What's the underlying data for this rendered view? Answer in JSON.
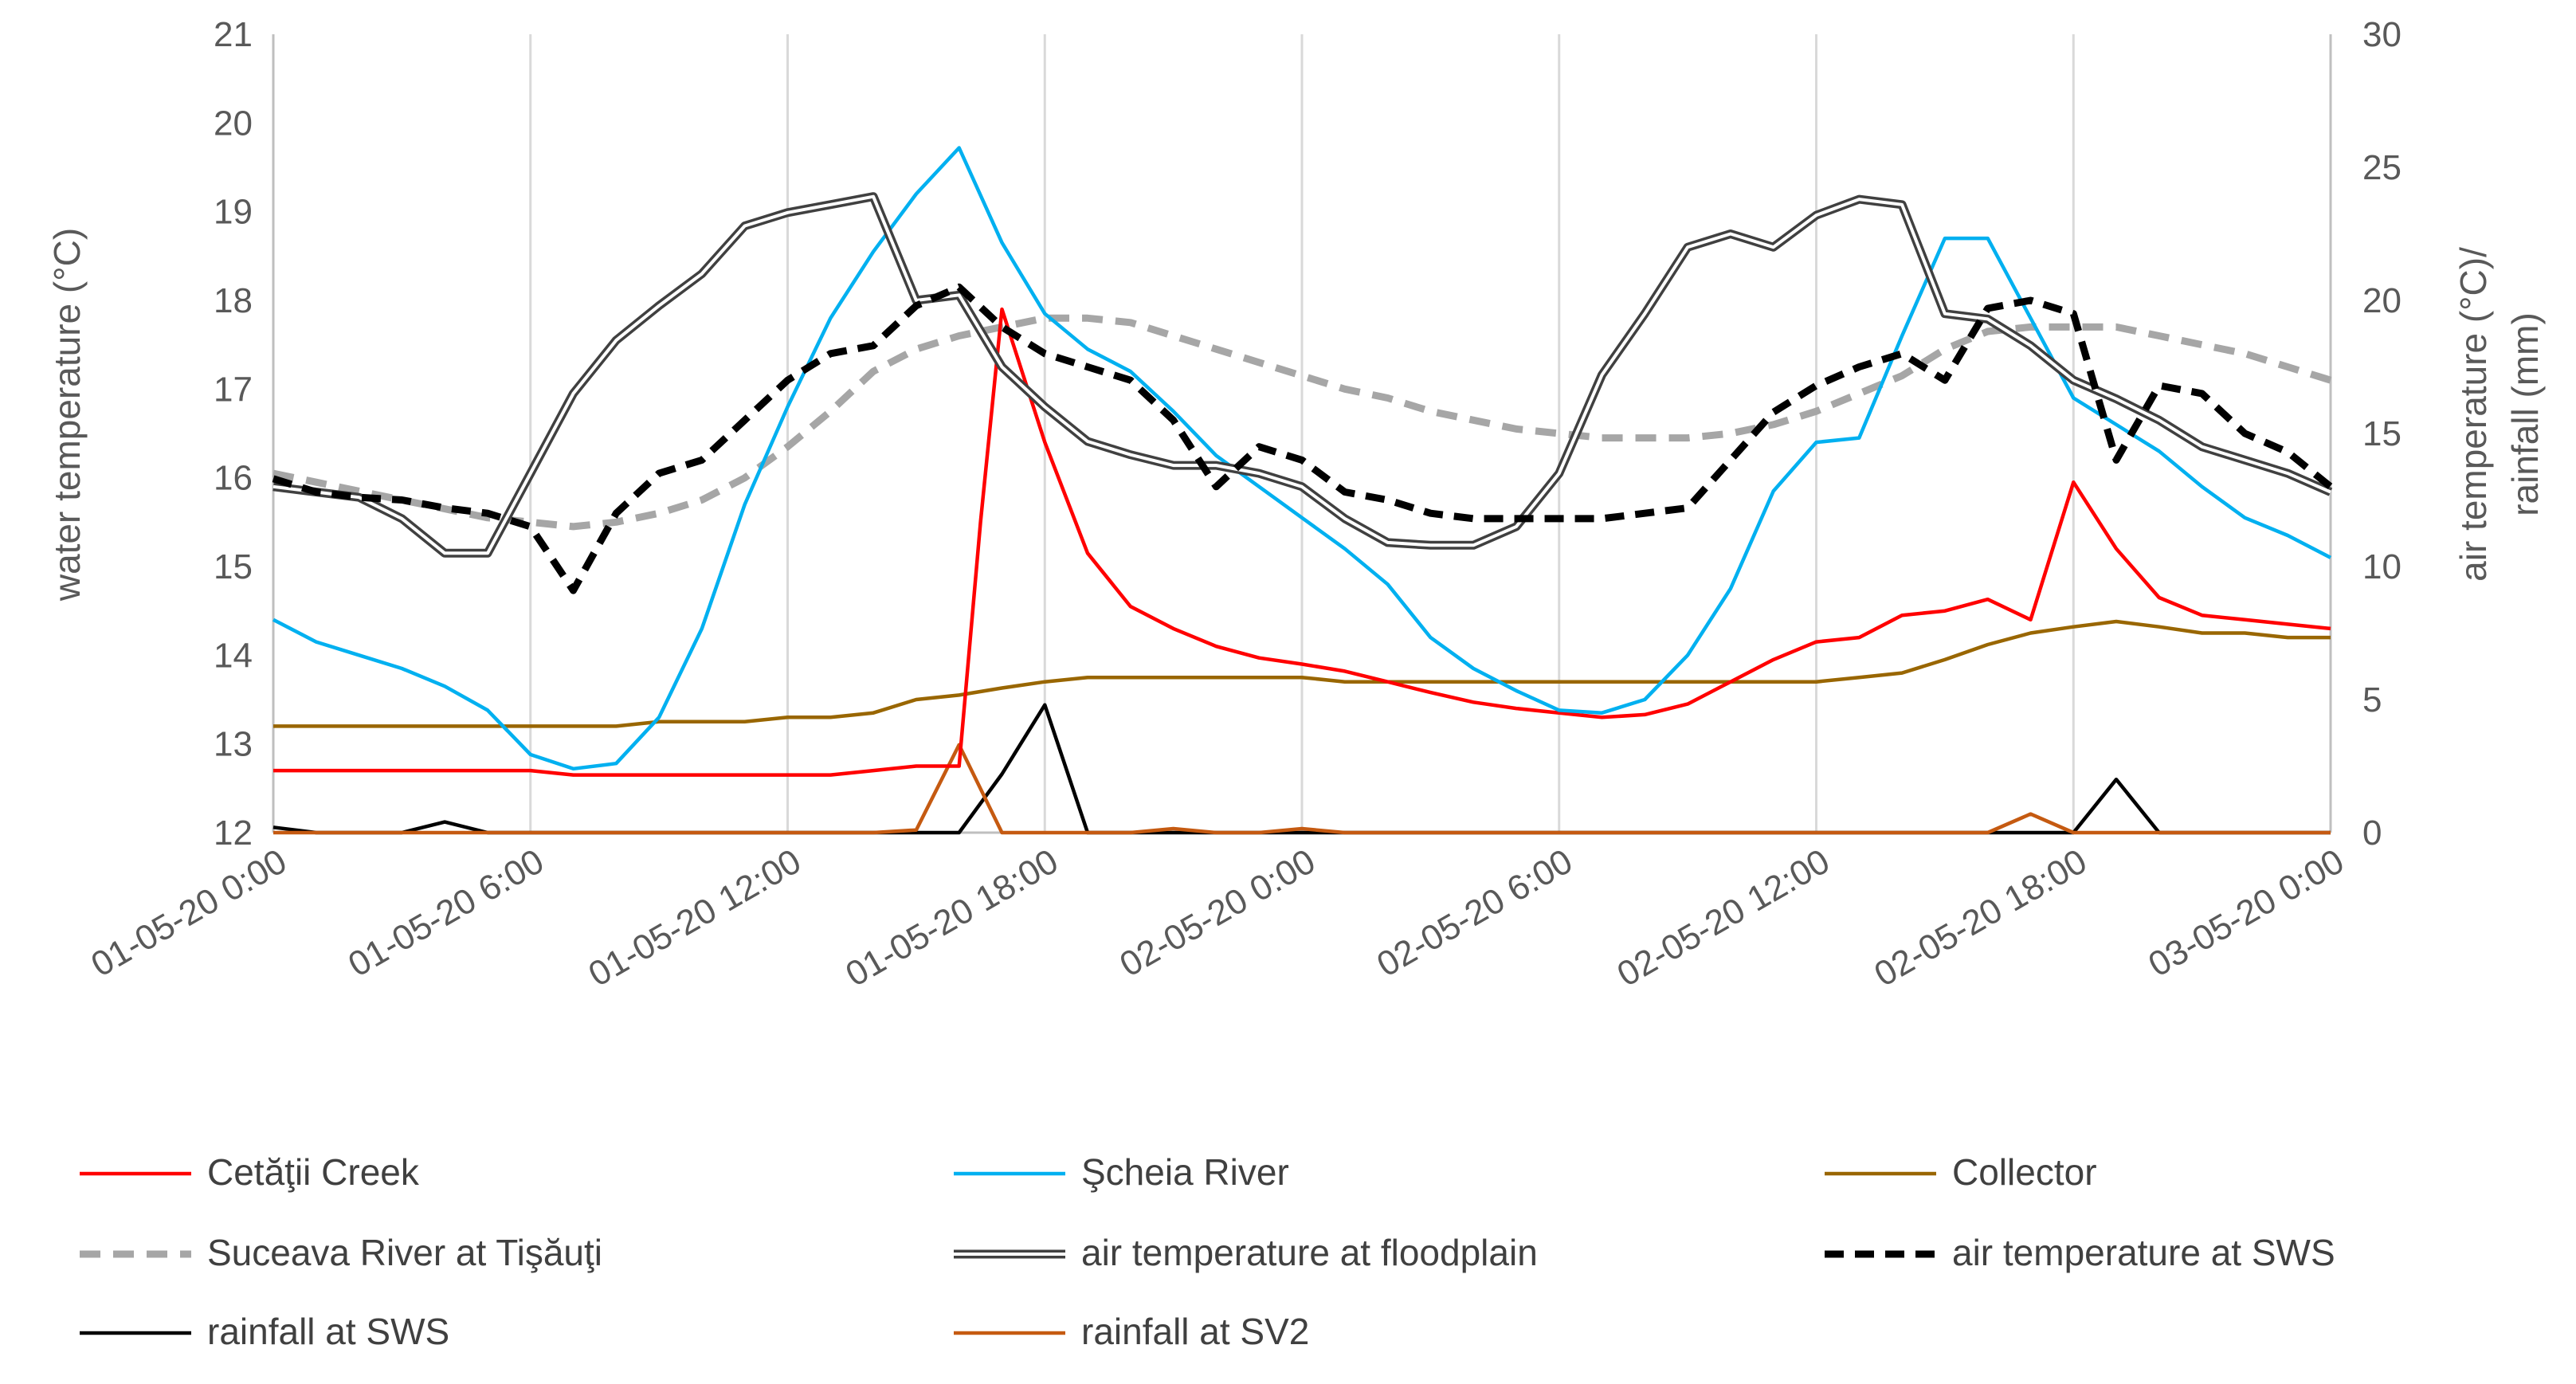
{
  "chart_data": {
    "type": "line",
    "x_labels": [
      "01-05-20 0:00",
      "01-05-20 6:00",
      "01-05-20 12:00",
      "01-05-20 18:00",
      "02-05-20 0:00",
      "02-05-20 6:00",
      "02-05-20 12:00",
      "02-05-20 18:00",
      "03-05-20 0:00"
    ],
    "x_range_hours": [
      0,
      48
    ],
    "y_left": {
      "label": "water temperature (°C)",
      "range": [
        12,
        21
      ],
      "ticks": [
        12,
        13,
        14,
        15,
        16,
        17,
        18,
        19,
        20,
        21
      ]
    },
    "y_right": {
      "label_lines": [
        "air temperature (°C)/",
        "rainfall (mm)"
      ],
      "range": [
        0,
        30
      ],
      "ticks": [
        0,
        5,
        10,
        15,
        20,
        25,
        30
      ]
    },
    "grid": "vertical",
    "legend_position": "bottom",
    "series": [
      {
        "name": "Cetăţii Creek",
        "axis": "left",
        "color": "#ff0000",
        "style": "solid",
        "x": [
          0,
          1,
          2,
          3,
          4,
          5,
          6,
          7,
          8,
          9,
          10,
          11,
          12,
          13,
          14,
          15,
          16,
          16.5,
          17,
          18,
          19,
          20,
          21,
          22,
          23,
          24,
          25,
          26,
          27,
          28,
          29,
          30,
          31,
          32,
          33,
          34,
          35,
          36,
          37,
          38,
          39,
          40,
          41,
          42,
          43,
          44,
          45,
          46,
          47,
          48
        ],
        "y": [
          12.7,
          12.7,
          12.7,
          12.7,
          12.7,
          12.7,
          12.7,
          12.65,
          12.65,
          12.65,
          12.65,
          12.65,
          12.65,
          12.65,
          12.7,
          12.75,
          12.75,
          15.5,
          17.9,
          16.4,
          15.15,
          14.55,
          14.3,
          14.1,
          13.97,
          13.9,
          13.82,
          13.7,
          13.58,
          13.47,
          13.4,
          13.35,
          13.3,
          13.33,
          13.45,
          13.7,
          13.95,
          14.15,
          14.2,
          14.45,
          14.5,
          14.63,
          14.4,
          15.95,
          15.2,
          14.65,
          14.45,
          14.4,
          14.35,
          14.3
        ]
      },
      {
        "name": "Şcheia River",
        "axis": "left",
        "color": "#00b0f0",
        "style": "solid",
        "x": [
          0,
          1,
          2,
          3,
          4,
          5,
          6,
          7,
          8,
          9,
          10,
          11,
          12,
          13,
          14,
          15,
          16,
          17,
          18,
          19,
          20,
          21,
          22,
          23,
          24,
          25,
          26,
          27,
          28,
          29,
          30,
          31,
          32,
          33,
          34,
          35,
          36,
          37,
          38,
          39,
          40,
          41,
          42,
          43,
          44,
          45,
          46,
          47,
          48
        ],
        "y": [
          14.4,
          14.15,
          14.0,
          13.85,
          13.65,
          13.38,
          12.88,
          12.72,
          12.78,
          13.3,
          14.3,
          15.7,
          16.8,
          17.8,
          18.55,
          19.2,
          19.72,
          18.65,
          17.85,
          17.45,
          17.2,
          16.75,
          16.25,
          15.9,
          15.55,
          15.2,
          14.8,
          14.2,
          13.85,
          13.6,
          13.38,
          13.35,
          13.5,
          14.0,
          14.75,
          15.85,
          16.4,
          16.45,
          17.6,
          18.7,
          18.7,
          17.8,
          16.9,
          16.6,
          16.3,
          15.9,
          15.55,
          15.35,
          15.1
        ]
      },
      {
        "name": "Collector",
        "axis": "left",
        "color": "#996600",
        "style": "solid",
        "x": [
          0,
          1,
          2,
          3,
          4,
          5,
          6,
          7,
          8,
          9,
          10,
          11,
          12,
          13,
          14,
          15,
          16,
          17,
          18,
          19,
          20,
          21,
          22,
          23,
          24,
          25,
          26,
          27,
          28,
          29,
          30,
          31,
          32,
          33,
          34,
          35,
          36,
          37,
          38,
          39,
          40,
          41,
          42,
          43,
          44,
          45,
          46,
          47,
          48
        ],
        "y": [
          13.2,
          13.2,
          13.2,
          13.2,
          13.2,
          13.2,
          13.2,
          13.2,
          13.2,
          13.25,
          13.25,
          13.25,
          13.3,
          13.3,
          13.35,
          13.5,
          13.55,
          13.63,
          13.7,
          13.75,
          13.75,
          13.75,
          13.75,
          13.75,
          13.75,
          13.7,
          13.7,
          13.7,
          13.7,
          13.7,
          13.7,
          13.7,
          13.7,
          13.7,
          13.7,
          13.7,
          13.7,
          13.75,
          13.8,
          13.95,
          14.12,
          14.25,
          14.32,
          14.38,
          14.32,
          14.25,
          14.25,
          14.2,
          14.2
        ]
      },
      {
        "name": "Suceava River at Tişăuţi",
        "axis": "left",
        "color": "#a6a6a6",
        "style": "dashed",
        "x": [
          0,
          1,
          2,
          3,
          4,
          5,
          6,
          7,
          8,
          9,
          10,
          11,
          12,
          13,
          14,
          15,
          16,
          17,
          18,
          19,
          20,
          21,
          22,
          23,
          24,
          25,
          26,
          27,
          28,
          29,
          30,
          31,
          32,
          33,
          34,
          35,
          36,
          37,
          38,
          39,
          40,
          41,
          42,
          43,
          44,
          45,
          46,
          47,
          48
        ],
        "y": [
          16.05,
          15.95,
          15.85,
          15.75,
          15.65,
          15.55,
          15.5,
          15.45,
          15.5,
          15.6,
          15.75,
          16.0,
          16.35,
          16.75,
          17.2,
          17.45,
          17.6,
          17.7,
          17.8,
          17.8,
          17.75,
          17.6,
          17.45,
          17.3,
          17.15,
          17.0,
          16.9,
          16.75,
          16.65,
          16.55,
          16.5,
          16.45,
          16.45,
          16.45,
          16.5,
          16.6,
          16.75,
          16.95,
          17.15,
          17.45,
          17.65,
          17.7,
          17.7,
          17.7,
          17.6,
          17.5,
          17.4,
          17.25,
          17.1
        ]
      },
      {
        "name": "air temperature at floodplain",
        "axis": "right",
        "color": "#404040",
        "style": "double",
        "x": [
          0,
          1,
          2,
          3,
          4,
          5,
          6,
          7,
          8,
          9,
          10,
          11,
          12,
          13,
          14,
          15,
          16,
          17,
          18,
          19,
          20,
          21,
          22,
          23,
          24,
          25,
          26,
          27,
          28,
          29,
          30,
          31,
          32,
          33,
          34,
          35,
          36,
          37,
          38,
          39,
          40,
          41,
          42,
          43,
          44,
          45,
          46,
          47,
          48
        ],
        "y": [
          13.0,
          12.8,
          12.6,
          11.8,
          10.5,
          10.5,
          13.5,
          16.5,
          18.5,
          19.8,
          21.0,
          22.8,
          23.3,
          23.6,
          23.9,
          20.0,
          20.2,
          17.5,
          16.0,
          14.7,
          14.2,
          13.8,
          13.8,
          13.5,
          13.0,
          11.8,
          10.9,
          10.8,
          10.8,
          11.5,
          13.5,
          17.2,
          19.5,
          22.0,
          22.5,
          22.0,
          23.2,
          23.8,
          23.6,
          19.5,
          19.3,
          18.3,
          17.0,
          16.3,
          15.5,
          14.5,
          14.0,
          13.5,
          12.8
        ]
      },
      {
        "name": "air temperature at SWS",
        "axis": "right",
        "color": "#000000",
        "style": "dashed-bold",
        "x": [
          0,
          1,
          2,
          3,
          4,
          5,
          6,
          7,
          8,
          9,
          10,
          11,
          12,
          13,
          14,
          15,
          16,
          17,
          18,
          19,
          20,
          21,
          22,
          23,
          24,
          25,
          26,
          27,
          28,
          29,
          30,
          31,
          32,
          33,
          34,
          35,
          36,
          37,
          38,
          39,
          40,
          41,
          42,
          43,
          44,
          45,
          46,
          47,
          48
        ],
        "y": [
          13.3,
          12.8,
          12.6,
          12.5,
          12.2,
          12.0,
          11.5,
          9.1,
          12.0,
          13.5,
          14.0,
          15.5,
          17.0,
          18.0,
          18.3,
          19.8,
          20.5,
          19.0,
          18.0,
          17.5,
          17.0,
          15.5,
          13.0,
          14.5,
          14.0,
          12.8,
          12.5,
          12.0,
          11.8,
          11.8,
          11.8,
          11.8,
          12.0,
          12.2,
          14.0,
          15.8,
          16.8,
          17.5,
          18.0,
          17.0,
          19.7,
          20.0,
          19.5,
          14.0,
          16.8,
          16.5,
          15.0,
          14.3,
          13.0
        ]
      },
      {
        "name": "rainfall at SWS",
        "axis": "right",
        "color": "#000000",
        "style": "solid",
        "x": [
          0,
          1,
          2,
          3,
          4,
          5,
          6,
          7,
          8,
          9,
          10,
          11,
          12,
          13,
          14,
          15,
          16,
          17,
          18,
          19,
          20,
          21,
          22,
          23,
          24,
          25,
          26,
          27,
          28,
          29,
          30,
          31,
          32,
          33,
          34,
          35,
          36,
          37,
          38,
          39,
          40,
          41,
          42,
          43,
          44,
          45,
          46,
          47,
          48
        ],
        "y": [
          0.2,
          0,
          0,
          0,
          0.4,
          0,
          0,
          0,
          0,
          0,
          0,
          0,
          0,
          0,
          0,
          0,
          0,
          2.2,
          4.8,
          0,
          0,
          0,
          0,
          0,
          0,
          0,
          0,
          0,
          0,
          0,
          0,
          0,
          0,
          0,
          0,
          0,
          0,
          0,
          0,
          0,
          0,
          0,
          0,
          2.0,
          0,
          0,
          0,
          0,
          0
        ]
      },
      {
        "name": "rainfall at SV2",
        "axis": "right",
        "color": "#c55a11",
        "style": "solid",
        "x": [
          0,
          1,
          2,
          3,
          4,
          5,
          6,
          7,
          8,
          9,
          10,
          11,
          12,
          13,
          14,
          15,
          16,
          17,
          18,
          19,
          20,
          21,
          22,
          23,
          24,
          25,
          26,
          27,
          28,
          29,
          30,
          31,
          32,
          33,
          34,
          35,
          36,
          37,
          38,
          39,
          40,
          41,
          42,
          43,
          44,
          45,
          46,
          47,
          48
        ],
        "y": [
          0,
          0,
          0,
          0,
          0,
          0,
          0,
          0,
          0,
          0,
          0,
          0,
          0,
          0,
          0,
          0.1,
          3.3,
          0,
          0,
          0,
          0,
          0.15,
          0,
          0,
          0.15,
          0,
          0,
          0,
          0,
          0,
          0,
          0,
          0,
          0,
          0,
          0,
          0,
          0,
          0,
          0,
          0,
          0.7,
          0,
          0,
          0,
          0,
          0,
          0,
          0
        ]
      }
    ]
  }
}
